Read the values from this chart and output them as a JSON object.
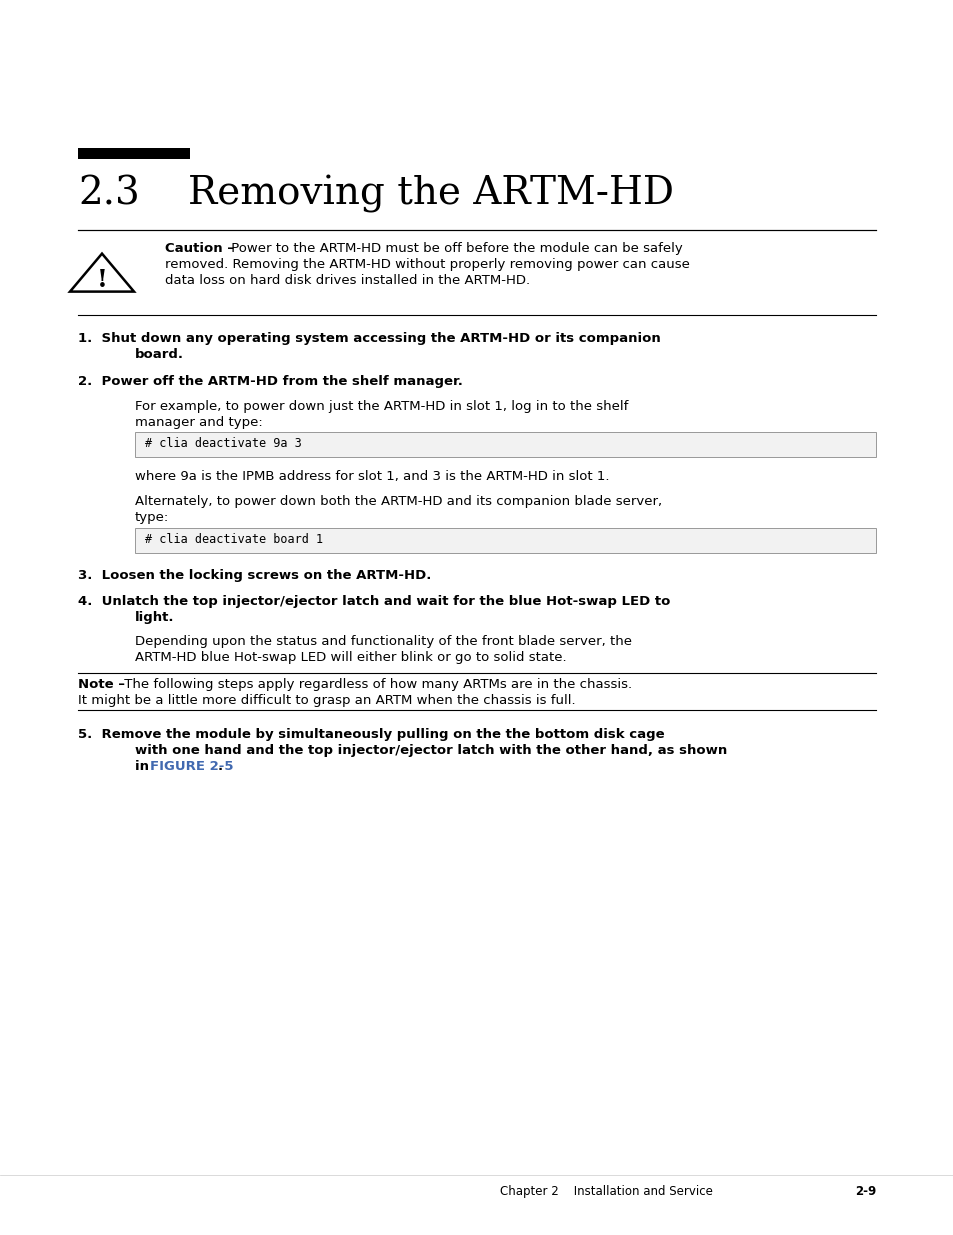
{
  "bg_color": "#ffffff",
  "section_number": "2.3",
  "section_title": "Removing the ARTM-HD",
  "caution_bold": "Caution –",
  "caution_text_rest": " Power to the ARTM-HD must be off before the module can be safely",
  "caution_line2": "removed. Removing the ARTM-HD without properly removing power can cause",
  "caution_line3": "data loss on hard disk drives installed in the ARTM-HD.",
  "step1_line1": "1.  Shut down any operating system accessing the ARTM-HD or its companion",
  "step1_line2": "board.",
  "step2_line1": "2.  Power off the ARTM-HD from the shelf manager.",
  "step2b_line1": "For example, to power down just the ARTM-HD in slot 1, log in to the shelf",
  "step2b_line2": "manager and type:",
  "code1": "# clia deactivate 9a 3",
  "code1_note": "where 9a is the IPMB address for slot 1, and 3 is the ARTM-HD in slot 1.",
  "code1_note2_line1": "Alternately, to power down both the ARTM-HD and its companion blade server,",
  "code1_note2_line2": "type:",
  "code2": "# clia deactivate board 1",
  "step3_line1": "3.  Loosen the locking screws on the ARTM-HD.",
  "step4_line1": "4.  Unlatch the top injector/ejector latch and wait for the blue Hot-swap LED to",
  "step4_line2": "light.",
  "step4b_line1": "Depending upon the status and functionality of the front blade server, the",
  "step4b_line2": "ARTM-HD blue Hot-swap LED will either blink or go to solid state.",
  "note_bold": "Note –",
  "note_rest": " The following steps apply regardless of how many ARTMs are in the chassis.",
  "note_line2": "It might be a little more difficult to grasp an ARTM when the chassis is full.",
  "step5_line1": "5.  Remove the module by simultaneously pulling on the the bottom disk cage",
  "step5_line2": "with one hand and the top injector/ejector latch with the other hand, as shown",
  "step5_pre_link": "in ",
  "step5_link": "FIGURE 2-5",
  "step5_post_link": ".",
  "footer_chapter": "Chapter 2    Installation and Service",
  "footer_page": "2-9",
  "link_color": "#4169b0"
}
